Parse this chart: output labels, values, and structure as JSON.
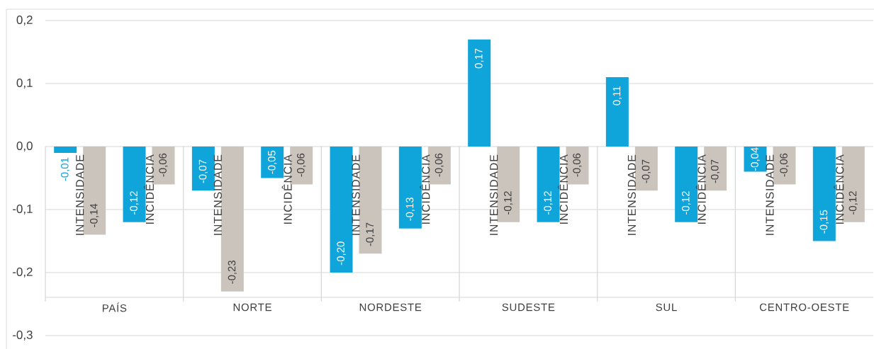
{
  "chart_data": {
    "type": "bar",
    "categories": [
      "INTENSIDADE",
      "INCIDÊNCIA",
      "INTENSIDADE",
      "INCIDÊNCIA",
      "INTENSIDADE",
      "INCIDÊNCIA",
      "INTENSIDADE",
      "INCIDÊNCIA",
      "INTENSIDADE",
      "INCIDÊNCIA",
      "INTENSIDADE",
      "INCIDÊNCIA"
    ],
    "series": [
      {
        "color": "#0fa4da",
        "values": [
          -0.01,
          -0.12,
          -0.07,
          -0.05,
          -0.2,
          -0.13,
          0.17,
          -0.12,
          0.11,
          -0.12,
          -0.04,
          -0.15
        ],
        "value_labels": [
          "-0,01",
          "-0,12",
          "-0,07",
          "-0,05",
          "-0,20",
          "-0,13",
          "0,17",
          "-0,12",
          "0,11",
          "-0,12",
          "-0,04",
          "-0,15"
        ]
      },
      {
        "color": "#cbc4bc",
        "values": [
          -0.14,
          -0.06,
          -0.23,
          -0.06,
          -0.17,
          -0.06,
          -0.12,
          -0.06,
          -0.07,
          -0.07,
          -0.06,
          -0.12
        ],
        "value_labels": [
          "-0,14",
          "-0,06",
          "-0,23",
          "-0,06",
          "-0,17",
          "-0,06",
          "-0,12",
          "-0,06",
          "-0,07",
          "-0,07",
          "-0,06",
          "-0,12"
        ]
      }
    ],
    "ylim": [
      -0.3,
      0.2
    ],
    "yticks": [
      {
        "value": 0.2,
        "label": "0,2"
      },
      {
        "value": 0.1,
        "label": "0,1"
      },
      {
        "value": 0.0,
        "label": "0,0"
      },
      {
        "value": -0.1,
        "label": "-0,1"
      },
      {
        "value": -0.2,
        "label": "-0,2"
      },
      {
        "value": -0.3,
        "label": "-0,3"
      }
    ],
    "grid": "y",
    "annotations": [
      "PAÍS",
      "NORTE",
      "NORDESTE",
      "SUDESTE",
      "SUL",
      "CENTRO-OESTE"
    ]
  }
}
